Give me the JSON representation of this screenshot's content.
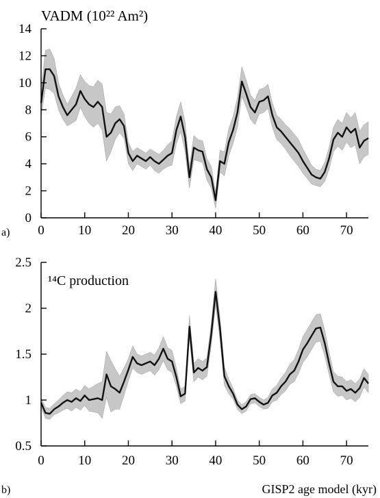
{
  "chart_data": [
    {
      "type": "line",
      "panel_label": "a)",
      "title": "VADM (10²² Am²)",
      "xlabel": "",
      "xlim": [
        0,
        75
      ],
      "ylim": [
        0,
        14
      ],
      "xticks": [
        "0",
        "10",
        "20",
        "30",
        "40",
        "50",
        "60",
        "70"
      ],
      "yticks": [
        "0",
        "2",
        "4",
        "6",
        "8",
        "10",
        "12",
        "14"
      ],
      "x": [
        0,
        1,
        2,
        3,
        4,
        5,
        6,
        7,
        8,
        9,
        10,
        11,
        12,
        13,
        14,
        15,
        16,
        17,
        18,
        19,
        20,
        21,
        22,
        23,
        24,
        25,
        26,
        27,
        28,
        29,
        30,
        31,
        32,
        33,
        34,
        35,
        36,
        37,
        38,
        39,
        40,
        41,
        42,
        43,
        44,
        45,
        46,
        47,
        48,
        49,
        50,
        51,
        52,
        53,
        54,
        55,
        56,
        57,
        58,
        59,
        60,
        61,
        62,
        63,
        64,
        65,
        66,
        67,
        68,
        69,
        70,
        71,
        72,
        73,
        74,
        75
      ],
      "series": [
        {
          "values": [
            8.5,
            11.0,
            11.0,
            10.5,
            9.0,
            8.2,
            7.6,
            8.0,
            8.4,
            9.4,
            8.8,
            8.4,
            8.2,
            8.6,
            8.2,
            6.0,
            6.3,
            7.0,
            7.3,
            6.8,
            4.8,
            4.2,
            4.6,
            4.4,
            4.2,
            4.5,
            4.2,
            4.0,
            4.3,
            4.6,
            4.8,
            6.5,
            7.5,
            6.0,
            3.0,
            5.2,
            5.0,
            4.9,
            3.6,
            3.0,
            1.3,
            4.2,
            4.0,
            5.6,
            6.5,
            7.8,
            10.1,
            9.2,
            8.2,
            7.8,
            8.6,
            8.7,
            9.0,
            7.6,
            6.7,
            6.4,
            6.0,
            5.6,
            5.2,
            4.8,
            4.2,
            3.7,
            3.2,
            3.0,
            2.9,
            3.4,
            4.4,
            5.8,
            6.3,
            6.0,
            6.7,
            6.3,
            6.6,
            5.2,
            5.7,
            5.9
          ],
          "band": [
            1.0,
            1.4,
            1.5,
            1.3,
            1.0,
            0.9,
            0.8,
            1.0,
            1.2,
            1.2,
            1.3,
            1.4,
            1.5,
            1.6,
            1.7,
            1.8,
            1.4,
            1.2,
            1.0,
            0.9,
            0.8,
            0.7,
            0.6,
            0.6,
            0.6,
            0.6,
            0.7,
            0.7,
            0.7,
            0.8,
            0.9,
            1.0,
            1.1,
            1.1,
            0.8,
            0.9,
            0.8,
            0.8,
            0.8,
            0.8,
            0.6,
            0.8,
            0.9,
            1.0,
            1.0,
            1.1,
            1.1,
            1.0,
            0.9,
            0.9,
            0.9,
            0.9,
            0.9,
            0.9,
            0.9,
            0.9,
            0.9,
            1.0,
            1.0,
            1.0,
            0.9,
            0.8,
            0.7,
            0.6,
            0.6,
            0.7,
            0.8,
            0.9,
            1.0,
            1.0,
            1.1,
            1.1,
            1.2,
            1.2,
            1.2,
            1.2
          ]
        }
      ]
    },
    {
      "type": "line",
      "panel_label": "b)",
      "title": "¹⁴C production",
      "xlabel": "GISP2 age model (kyr)",
      "xlim": [
        0,
        75
      ],
      "ylim": [
        0.5,
        2.5
      ],
      "xticks": [
        "0",
        "10",
        "20",
        "30",
        "40",
        "50",
        "60",
        "70"
      ],
      "yticks": [
        "0.5",
        "1",
        "1.5",
        "2",
        "2.5"
      ],
      "x": [
        0,
        1,
        2,
        3,
        4,
        5,
        6,
        7,
        8,
        9,
        10,
        11,
        12,
        13,
        14,
        15,
        16,
        17,
        18,
        19,
        20,
        21,
        22,
        23,
        24,
        25,
        26,
        27,
        28,
        29,
        30,
        31,
        32,
        33,
        34,
        35,
        36,
        37,
        38,
        39,
        40,
        41,
        42,
        43,
        44,
        45,
        46,
        47,
        48,
        49,
        50,
        51,
        52,
        53,
        54,
        55,
        56,
        57,
        58,
        59,
        60,
        61,
        62,
        63,
        64,
        65,
        66,
        67,
        68,
        69,
        70,
        71,
        72,
        73,
        74,
        75
      ],
      "series": [
        {
          "values": [
            0.97,
            0.86,
            0.85,
            0.9,
            0.93,
            0.97,
            1.0,
            0.98,
            1.02,
            0.99,
            1.05,
            1.0,
            1.01,
            1.02,
            1.0,
            1.28,
            1.15,
            1.12,
            1.08,
            1.2,
            1.33,
            1.47,
            1.4,
            1.38,
            1.4,
            1.42,
            1.38,
            1.45,
            1.56,
            1.45,
            1.42,
            1.25,
            1.04,
            1.07,
            1.8,
            1.3,
            1.35,
            1.32,
            1.36,
            1.72,
            2.18,
            1.78,
            1.26,
            1.15,
            1.07,
            0.95,
            0.9,
            0.93,
            1.01,
            1.02,
            0.98,
            0.95,
            0.97,
            1.05,
            1.08,
            1.15,
            1.2,
            1.28,
            1.32,
            1.42,
            1.55,
            1.62,
            1.7,
            1.78,
            1.79,
            1.62,
            1.4,
            1.2,
            1.15,
            1.15,
            1.1,
            1.12,
            1.08,
            1.13,
            1.24,
            1.18
          ],
          "band": [
            0.05,
            0.06,
            0.06,
            0.06,
            0.07,
            0.08,
            0.09,
            0.1,
            0.1,
            0.1,
            0.11,
            0.12,
            0.14,
            0.16,
            0.2,
            0.25,
            0.28,
            0.22,
            0.18,
            0.15,
            0.12,
            0.12,
            0.1,
            0.1,
            0.1,
            0.1,
            0.11,
            0.12,
            0.13,
            0.12,
            0.12,
            0.1,
            0.08,
            0.08,
            0.12,
            0.1,
            0.1,
            0.1,
            0.1,
            0.12,
            0.14,
            0.12,
            0.1,
            0.08,
            0.06,
            0.05,
            0.05,
            0.05,
            0.05,
            0.05,
            0.05,
            0.05,
            0.06,
            0.07,
            0.08,
            0.09,
            0.1,
            0.11,
            0.12,
            0.13,
            0.14,
            0.15,
            0.15,
            0.15,
            0.15,
            0.14,
            0.12,
            0.11,
            0.11,
            0.1,
            0.1,
            0.1,
            0.1,
            0.1,
            0.1,
            0.1
          ]
        }
      ]
    }
  ]
}
